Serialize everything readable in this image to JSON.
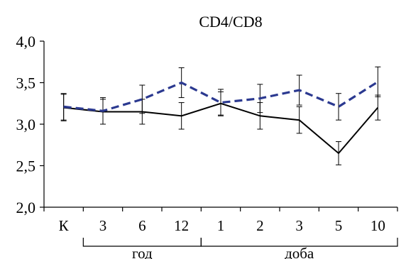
{
  "chart_data": {
    "type": "line",
    "title": "CD4/CD8",
    "categories": [
      "К",
      "3",
      "6",
      "12",
      "1",
      "2",
      "3",
      "5",
      "10"
    ],
    "series": [
      {
        "style": "solid",
        "color": "#000000",
        "values": [
          3.2,
          3.15,
          3.15,
          3.1,
          3.25,
          3.1,
          3.05,
          2.65,
          3.2
        ],
        "error": [
          0.16,
          0.15,
          0.15,
          0.16,
          0.14,
          0.16,
          0.16,
          0.14,
          0.15
        ]
      },
      {
        "style": "dashed",
        "color": "#2b3990",
        "values": [
          3.21,
          3.16,
          3.3,
          3.5,
          3.26,
          3.31,
          3.41,
          3.21,
          3.51
        ],
        "error": [
          0.16,
          0.16,
          0.17,
          0.18,
          0.16,
          0.17,
          0.18,
          0.16,
          0.18
        ]
      }
    ],
    "yticks": [
      "2,0",
      "2,5",
      "3,0",
      "3,5",
      "4,0"
    ],
    "ylim": [
      2.0,
      4.0
    ],
    "grid": false,
    "legend": "none",
    "groups": [
      {
        "label": "год",
        "from_index": 1,
        "to_index": 3
      },
      {
        "label": "доба",
        "from_index": 4,
        "to_index": 8
      }
    ]
  }
}
